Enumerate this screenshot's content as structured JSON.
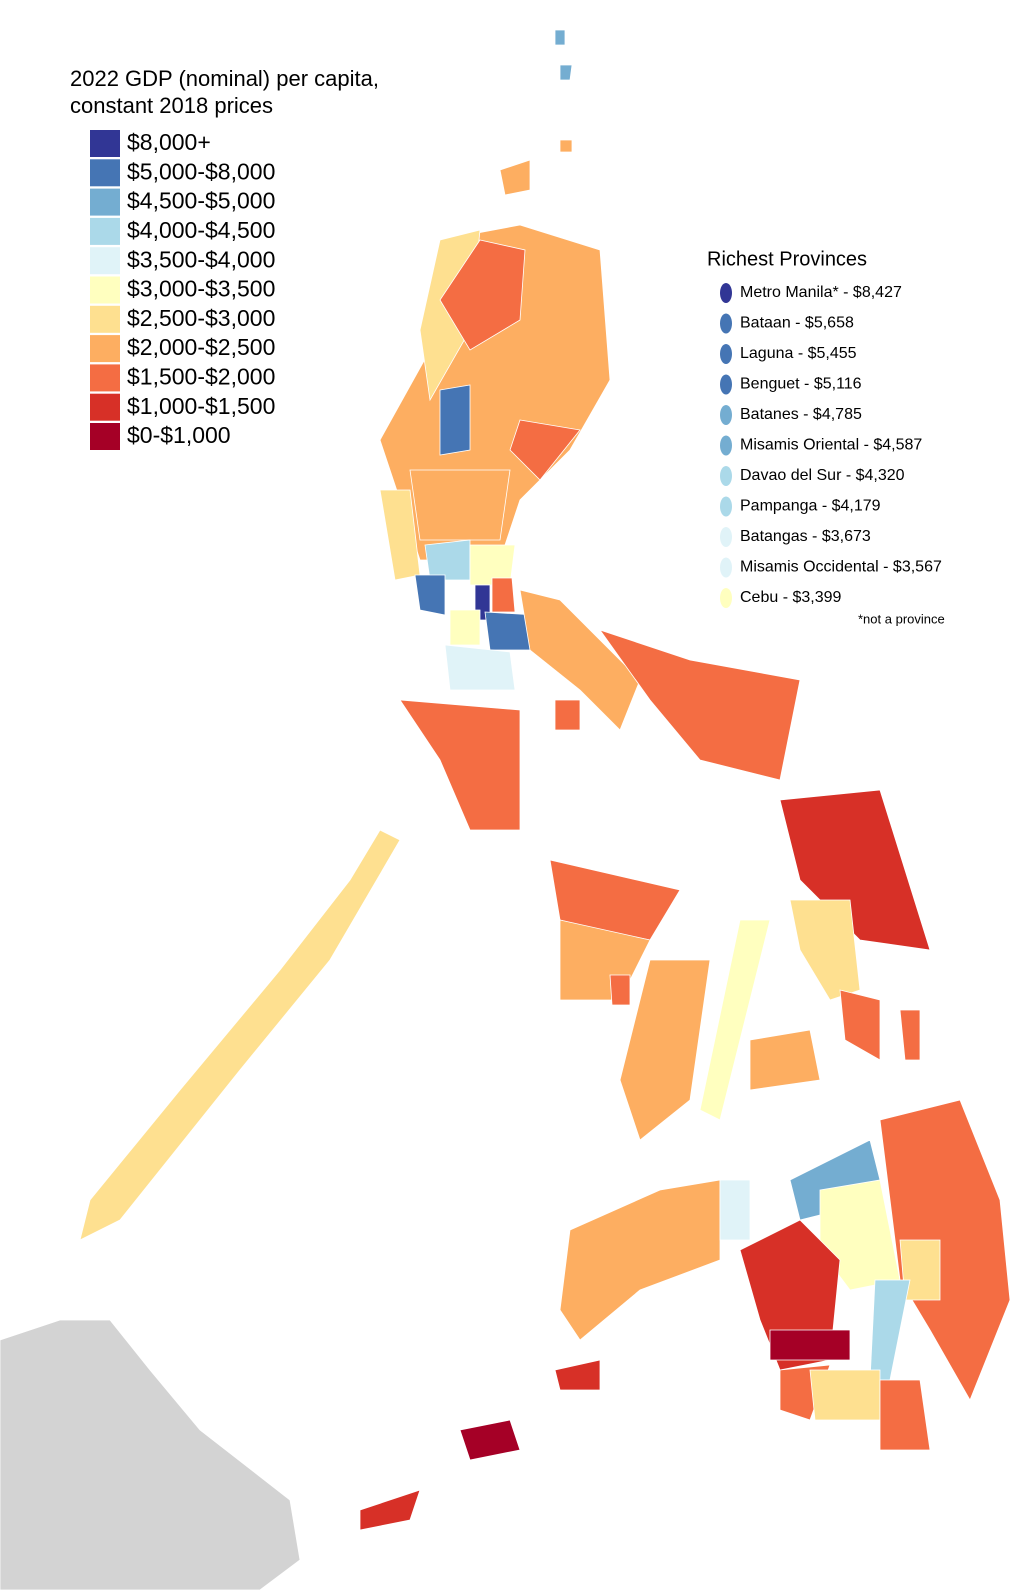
{
  "legend": {
    "title_lines": [
      "2022 GDP (nominal) per capita,",
      "constant 2018 prices"
    ],
    "items": [
      {
        "label": "$8,000+",
        "color": "#313695"
      },
      {
        "label": "$5,000-$8,000",
        "color": "#4575b4"
      },
      {
        "label": "$4,500-$5,000",
        "color": "#74add1"
      },
      {
        "label": "$4,000-$4,500",
        "color": "#abd9e9"
      },
      {
        "label": "$3,500-$4,000",
        "color": "#e0f3f8"
      },
      {
        "label": "$3,000-$3,500",
        "color": "#ffffbf"
      },
      {
        "label": "$2,500-$3,000",
        "color": "#fee090"
      },
      {
        "label": "$2,000-$2,500",
        "color": "#fdae61"
      },
      {
        "label": "$1,500-$2,000",
        "color": "#f46d43"
      },
      {
        "label": "$1,000-$1,500",
        "color": "#d73027"
      },
      {
        "label": "$0-$1,000",
        "color": "#a50026"
      }
    ]
  },
  "richest": {
    "title": "Richest Provinces",
    "items": [
      {
        "label": "Metro Manila* - $8,427",
        "color": "#313695"
      },
      {
        "label": "Bataan - $5,658",
        "color": "#4575b4"
      },
      {
        "label": "Laguna - $5,455",
        "color": "#4575b4"
      },
      {
        "label": "Benguet - $5,116",
        "color": "#4575b4"
      },
      {
        "label": "Batanes - $4,785",
        "color": "#74add1"
      },
      {
        "label": "Misamis Oriental - $4,587",
        "color": "#74add1"
      },
      {
        "label": "Davao del Sur - $4,320",
        "color": "#abd9e9"
      },
      {
        "label": "Pampanga - $4,179",
        "color": "#abd9e9"
      },
      {
        "label": "Batangas - $3,673",
        "color": "#e0f3f8"
      },
      {
        "label": "Misamis Occidental - $3,567",
        "color": "#e0f3f8"
      },
      {
        "label": "Cebu - $3,399",
        "color": "#ffffbf"
      }
    ],
    "note": "*not a province"
  }
}
